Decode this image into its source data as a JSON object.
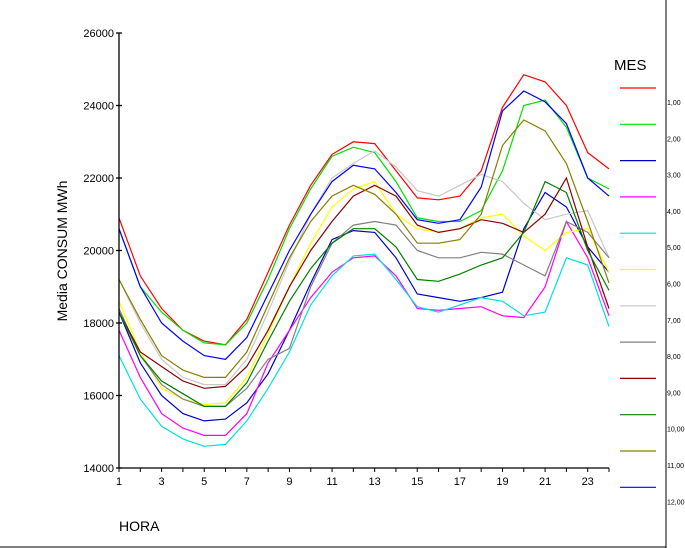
{
  "chart_data": {
    "type": "line",
    "xlabel": "HORA",
    "ylabel": "Media CONSUM MWh",
    "x": [
      1,
      2,
      3,
      4,
      5,
      6,
      7,
      8,
      9,
      10,
      11,
      12,
      13,
      14,
      15,
      16,
      17,
      18,
      19,
      20,
      21,
      22,
      23,
      24
    ],
    "x_ticks": [
      1,
      3,
      5,
      7,
      9,
      11,
      13,
      15,
      17,
      19,
      21,
      23
    ],
    "y_ticks": [
      14000,
      16000,
      18000,
      20000,
      22000,
      24000,
      26000
    ],
    "xlim": [
      1,
      24
    ],
    "ylim": [
      14000,
      26000
    ],
    "grid": false,
    "legend": {
      "title": "MES",
      "position": "right"
    },
    "series": [
      {
        "name": "1,00",
        "color": "#ff0000",
        "values": [
          20900,
          19300,
          18400,
          17800,
          17500,
          17400,
          18100,
          19400,
          20700,
          21800,
          22650,
          23000,
          22950,
          22200,
          21450,
          21400,
          21500,
          22200,
          23950,
          24850,
          24650,
          24000,
          22700,
          22250
        ]
      },
      {
        "name": "2,00",
        "color": "#00e000",
        "values": [
          20600,
          19000,
          18300,
          17800,
          17450,
          17400,
          18000,
          19200,
          20600,
          21700,
          22600,
          22850,
          22700,
          21900,
          20900,
          20800,
          20800,
          21100,
          22200,
          24000,
          24150,
          23400,
          22000,
          21700
        ]
      },
      {
        "name": "3,00",
        "color": "#0000cc",
        "values": [
          18300,
          16900,
          16000,
          15500,
          15300,
          15350,
          15800,
          16600,
          17800,
          19100,
          20300,
          20550,
          20500,
          19800,
          18800,
          18700,
          18600,
          18700,
          18850,
          20600,
          21600,
          21200,
          20100,
          19400
        ]
      },
      {
        "name": "4,00",
        "color": "#ff00ff",
        "values": [
          17800,
          16500,
          15500,
          15100,
          14900,
          14900,
          15500,
          16900,
          17800,
          18700,
          19400,
          19800,
          19850,
          19300,
          18400,
          18350,
          18400,
          18450,
          18200,
          18150,
          19000,
          20800,
          19800,
          18200
        ]
      },
      {
        "name": "5,00",
        "color": "#00e0e0",
        "values": [
          17100,
          15900,
          15150,
          14800,
          14600,
          14650,
          15300,
          16200,
          17200,
          18500,
          19300,
          19850,
          19900,
          19200,
          18450,
          18300,
          18500,
          18700,
          18600,
          18200,
          18300,
          19800,
          19600,
          17900
        ]
      },
      {
        "name": "6,00",
        "color": "#ffff00",
        "values": [
          18600,
          17200,
          16200,
          15900,
          15750,
          15800,
          16500,
          17700,
          19000,
          20200,
          21200,
          21700,
          21900,
          21000,
          20600,
          20500,
          20600,
          20900,
          21000,
          20400,
          20000,
          20500,
          20600,
          19400
        ]
      },
      {
        "name": "7,00",
        "color": "#c8c8c8",
        "values": [
          19200,
          18000,
          17000,
          16500,
          16300,
          16300,
          17000,
          18300,
          19700,
          21000,
          22000,
          22400,
          22750,
          22300,
          21650,
          21500,
          21800,
          22100,
          21900,
          21300,
          20850,
          21000,
          21100,
          19800
        ]
      },
      {
        "name": "8,00",
        "color": "#808080",
        "values": [
          18400,
          17100,
          16300,
          15900,
          15700,
          15700,
          16200,
          17000,
          17300,
          19000,
          20200,
          20700,
          20800,
          20700,
          20000,
          19800,
          19800,
          19950,
          19900,
          19600,
          19300,
          20800,
          20500,
          19800
        ]
      },
      {
        "name": "9,00",
        "color": "#8b0000",
        "values": [
          18300,
          17200,
          16800,
          16400,
          16200,
          16250,
          16800,
          17800,
          19000,
          20000,
          20800,
          21500,
          21800,
          21500,
          20700,
          20500,
          20600,
          20850,
          20750,
          20500,
          21000,
          22000,
          20100,
          18400
        ]
      },
      {
        "name": "10,00",
        "color": "#008000",
        "values": [
          18300,
          17100,
          16400,
          16050,
          15700,
          15700,
          16350,
          17500,
          18600,
          19500,
          20200,
          20600,
          20600,
          20100,
          19200,
          19150,
          19350,
          19600,
          19800,
          20500,
          21900,
          21600,
          20000,
          18900
        ]
      },
      {
        "name": "11,00",
        "color": "#8b7d00",
        "values": [
          19200,
          18100,
          17100,
          16700,
          16500,
          16500,
          17200,
          18500,
          19800,
          20800,
          21500,
          21800,
          21550,
          21000,
          20200,
          20200,
          20300,
          21000,
          22900,
          23600,
          23300,
          22400,
          20800,
          19100
        ]
      },
      {
        "name": "12,00",
        "color": "#0000ff",
        "values": [
          20600,
          19000,
          18000,
          17500,
          17100,
          17000,
          17600,
          18800,
          20000,
          21000,
          21900,
          22350,
          22250,
          21600,
          20850,
          20750,
          20850,
          21750,
          23850,
          24400,
          24100,
          23500,
          22000,
          21500
        ]
      }
    ]
  }
}
